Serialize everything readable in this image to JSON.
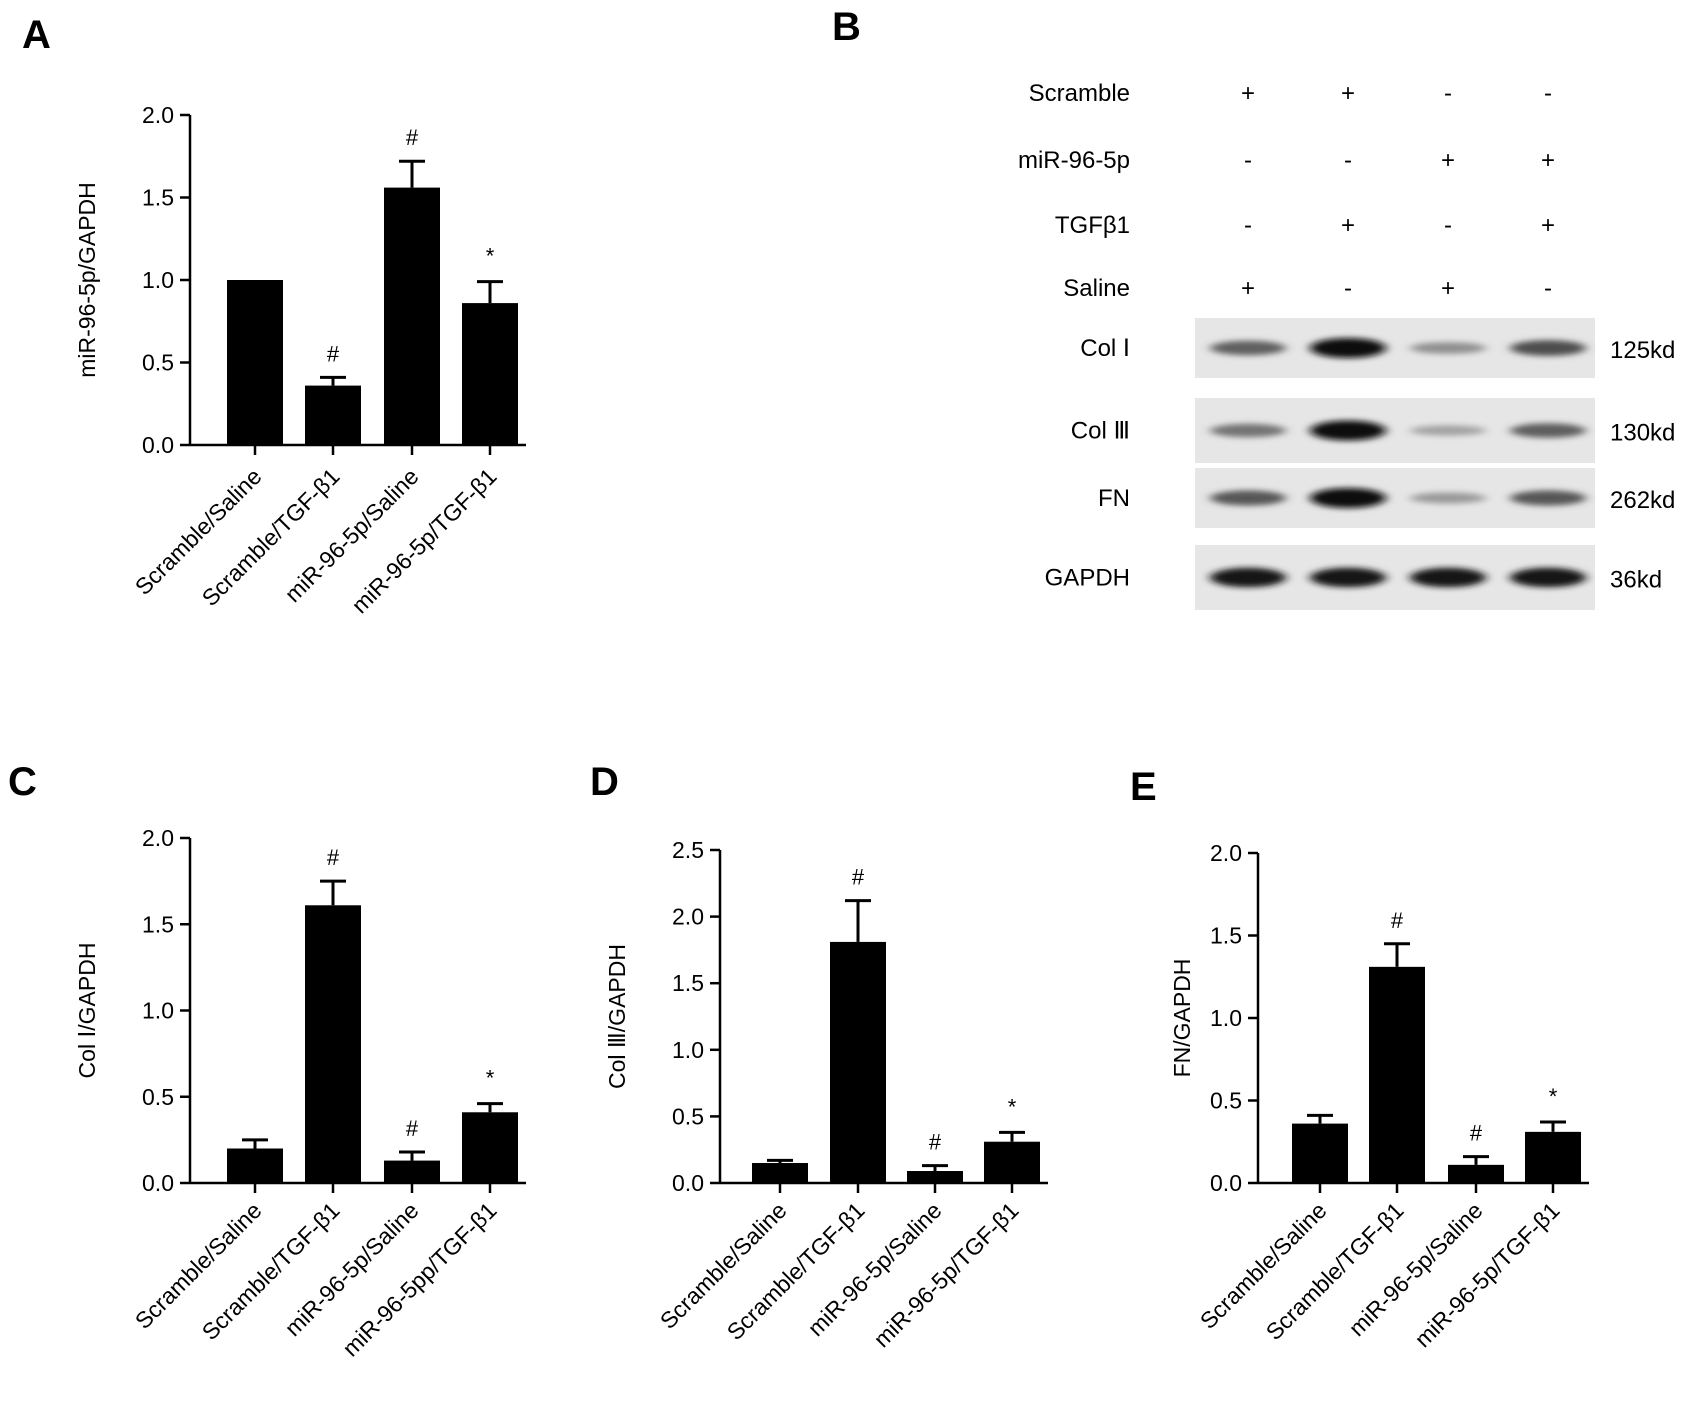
{
  "panels": {
    "A": "A",
    "B": "B",
    "C": "C",
    "D": "D",
    "E": "E"
  },
  "chart_data": [
    {
      "panel": "A",
      "type": "bar",
      "categories": [
        "Scramble/Saline",
        "Scramble/TGF-β1",
        "miR-96-5p/Saline",
        "miR-96-5p/TGF-β1"
      ],
      "values": [
        1.0,
        0.36,
        1.56,
        0.86
      ],
      "errors": [
        0.0,
        0.05,
        0.16,
        0.13
      ],
      "annotations": [
        "",
        "#",
        "#",
        "*"
      ],
      "ylabel": "miR-96-5p/GAPDH",
      "ylim": [
        0,
        2.0
      ],
      "yticks": [
        "0.0",
        "0.5",
        "1.0",
        "1.5",
        "2.0"
      ],
      "ytick_values": [
        0,
        0.5,
        1.0,
        1.5,
        2.0
      ],
      "bar_color": "#000000"
    },
    {
      "panel": "C",
      "type": "bar",
      "categories": [
        "Scramble/Saline",
        "Scramble/TGF-β1",
        "miR-96-5p/Saline",
        "miR-96-5pp/TGF-β1"
      ],
      "values": [
        0.2,
        1.61,
        0.13,
        0.41
      ],
      "errors": [
        0.05,
        0.14,
        0.05,
        0.05
      ],
      "annotations": [
        "",
        "#",
        "#",
        "*"
      ],
      "ylabel": "Col Ⅰ/GAPDH",
      "ylim": [
        0,
        2.0
      ],
      "yticks": [
        "0.0",
        "0.5",
        "1.0",
        "1.5",
        "2.0"
      ],
      "ytick_values": [
        0,
        0.5,
        1.0,
        1.5,
        2.0
      ],
      "bar_color": "#000000"
    },
    {
      "panel": "D",
      "type": "bar",
      "categories": [
        "Scramble/Saline",
        "Scramble/TGF-β1",
        "miR-96-5p/Saline",
        "miR-96-5p/TGF-β1"
      ],
      "values": [
        0.15,
        1.81,
        0.09,
        0.31
      ],
      "errors": [
        0.02,
        0.31,
        0.04,
        0.07
      ],
      "annotations": [
        "",
        "#",
        "#",
        "*"
      ],
      "ylabel": "Col Ⅲ/GAPDH",
      "ylim": [
        0,
        2.5
      ],
      "yticks": [
        "0.0",
        "0.5",
        "1.0",
        "1.5",
        "2.0",
        "2.5"
      ],
      "ytick_values": [
        0,
        0.5,
        1.0,
        1.5,
        2.0,
        2.5
      ],
      "bar_color": "#000000"
    },
    {
      "panel": "E",
      "type": "bar",
      "categories": [
        "Scramble/Saline",
        "Scramble/TGF-β1",
        "miR-96-5p/Saline",
        "miR-96-5p/TGF-β1"
      ],
      "values": [
        0.36,
        1.31,
        0.11,
        0.31
      ],
      "errors": [
        0.05,
        0.14,
        0.05,
        0.06
      ],
      "annotations": [
        "",
        "#",
        "#",
        "*"
      ],
      "ylabel": "FN/GAPDH",
      "ylim": [
        0,
        2.0
      ],
      "yticks": [
        "0.0",
        "0.5",
        "1.0",
        "1.5",
        "2.0"
      ],
      "ytick_values": [
        0,
        0.5,
        1.0,
        1.5,
        2.0
      ],
      "bar_color": "#000000"
    }
  ],
  "western_blot": {
    "conditions": [
      {
        "label": "Scramble",
        "signs": [
          "+",
          "+",
          "-",
          "-"
        ]
      },
      {
        "label": "miR-96-5p",
        "signs": [
          "-",
          "-",
          "+",
          "+"
        ]
      },
      {
        "label": "TGFβ1",
        "signs": [
          "-",
          "+",
          "-",
          "+"
        ]
      },
      {
        "label": "Saline",
        "signs": [
          "+",
          "-",
          "+",
          "-"
        ]
      }
    ],
    "bands": [
      {
        "label": "Col Ⅰ",
        "kd": "125kd",
        "intensities": [
          0.55,
          1.0,
          0.3,
          0.65
        ]
      },
      {
        "label": "Col Ⅲ",
        "kd": "130kd",
        "intensities": [
          0.45,
          1.0,
          0.2,
          0.55
        ]
      },
      {
        "label": "FN",
        "kd": "262kd",
        "intensities": [
          0.6,
          1.0,
          0.25,
          0.6
        ]
      },
      {
        "label": "GAPDH",
        "kd": "36kd",
        "intensities": [
          0.95,
          0.95,
          0.95,
          0.95
        ]
      }
    ]
  }
}
